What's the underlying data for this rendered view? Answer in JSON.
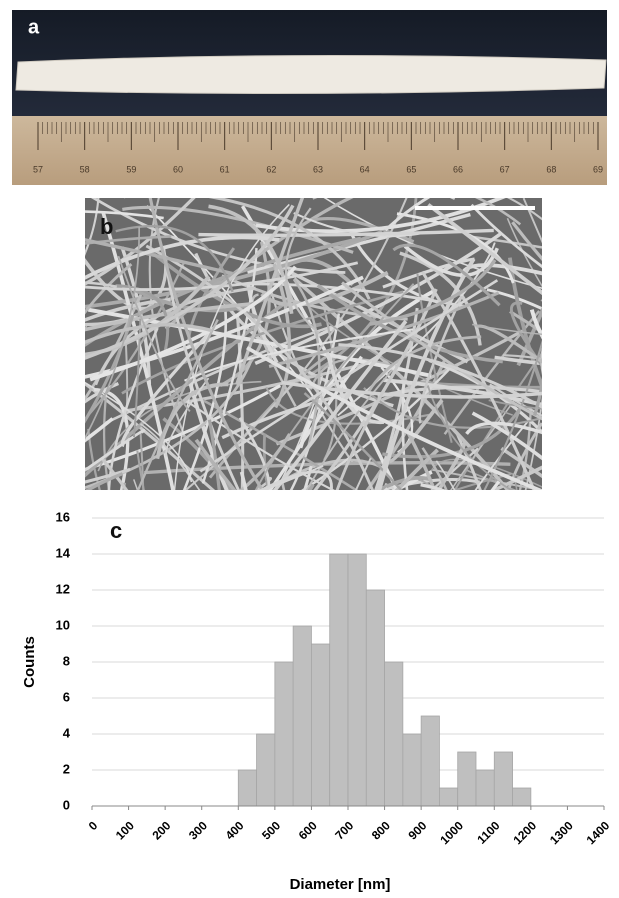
{
  "panels": {
    "a": {
      "label": "a",
      "ruler_labels": [
        57,
        58,
        59,
        60,
        61,
        62,
        63,
        64,
        65,
        66,
        67,
        68,
        69
      ]
    },
    "b": {
      "label": "b"
    }
  },
  "chart_data": {
    "type": "histogram",
    "panel_label": "c",
    "xlabel": "Diameter [nm]",
    "ylabel": "Counts",
    "bins": [
      400,
      450,
      500,
      550,
      600,
      650,
      700,
      750,
      800,
      850,
      900,
      950,
      1000,
      1050,
      1100,
      1150,
      1200
    ],
    "values": [
      2,
      4,
      8,
      10,
      9,
      14,
      14,
      12,
      8,
      4,
      5,
      1,
      3,
      2,
      3,
      1
    ],
    "color": "#bfbfbf",
    "xlim": [
      0,
      1400
    ],
    "xticks": [
      0,
      100,
      200,
      300,
      400,
      500,
      600,
      700,
      800,
      900,
      1000,
      1100,
      1200,
      1300,
      1400
    ],
    "ylim": [
      0,
      16
    ],
    "yticks": [
      0,
      2,
      4,
      6,
      8,
      10,
      12,
      14,
      16
    ],
    "grid": true
  }
}
